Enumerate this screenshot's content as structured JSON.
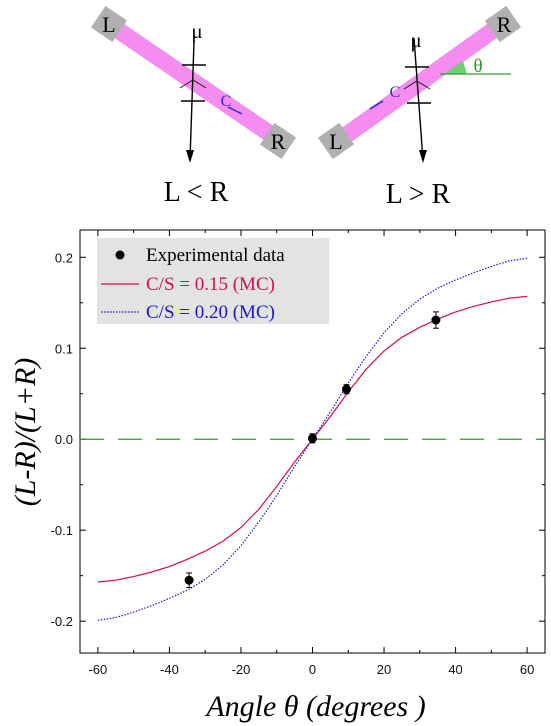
{
  "diagrams": {
    "left": {
      "end_left": "L",
      "end_right": "R",
      "muon": "μ",
      "center": "C",
      "condition": "L < R"
    },
    "right": {
      "end_left": "L",
      "end_right": "R",
      "muon": "μ",
      "center": "C",
      "angle": "θ",
      "condition": "L > R"
    }
  },
  "colors": {
    "bar": "#f58cf0",
    "end_caps": "#b0b0b0",
    "mc_015": "#d0104c",
    "mc_020": "#1a1acc",
    "zero_line": "#2e9a2e",
    "angle_fill": "#6fcf6f",
    "legend_bg": "#e3e3e3",
    "center_text": "#2b2bd8"
  },
  "chart_data": {
    "type": "line",
    "xlabel": "Angle θ (degrees )",
    "ylabel": "(L-R)/(L+R)",
    "xlim": [
      -65,
      65
    ],
    "ylim": [
      -0.235,
      0.23
    ],
    "xticks": [
      "-60",
      "-40",
      "-20",
      "0",
      "20",
      "40",
      "60"
    ],
    "yticks": [
      "-0.2",
      "-0.1",
      "0.0",
      "0.1",
      "0.2"
    ],
    "legend": {
      "placement": "top-left"
    },
    "series": [
      {
        "name": "Experimental data",
        "kind": "scatter",
        "points": [
          {
            "x": -34.5,
            "y": -0.155,
            "err": 0.008
          },
          {
            "x": 0,
            "y": 0.001,
            "err": 0.005
          },
          {
            "x": 9.5,
            "y": 0.055,
            "err": 0.005
          },
          {
            "x": 34.5,
            "y": 0.131,
            "err": 0.009
          }
        ]
      },
      {
        "name": "C/S = 0.15 (MC)",
        "kind": "line",
        "x": [
          -60,
          -55,
          -50,
          -45,
          -40,
          -35,
          -30,
          -25,
          -20,
          -15,
          -10,
          -5,
          0,
          5,
          10,
          15,
          20,
          25,
          30,
          35,
          40,
          45,
          50,
          55,
          60
        ],
        "y": [
          -0.157,
          -0.155,
          -0.151,
          -0.146,
          -0.14,
          -0.132,
          -0.123,
          -0.112,
          -0.097,
          -0.077,
          -0.052,
          -0.025,
          0.0,
          0.025,
          0.052,
          0.077,
          0.097,
          0.112,
          0.123,
          0.132,
          0.14,
          0.146,
          0.151,
          0.155,
          0.157
        ]
      },
      {
        "name": "C/S = 0.20 (MC)",
        "kind": "line",
        "x": [
          -60,
          -55,
          -50,
          -45,
          -40,
          -35,
          -30,
          -25,
          -20,
          -15,
          -10,
          -5,
          0,
          5,
          10,
          15,
          20,
          25,
          30,
          35,
          40,
          45,
          50,
          55,
          60
        ],
        "y": [
          -0.199,
          -0.196,
          -0.19,
          -0.183,
          -0.175,
          -0.166,
          -0.154,
          -0.138,
          -0.117,
          -0.091,
          -0.062,
          -0.03,
          0.0,
          0.03,
          0.062,
          0.091,
          0.117,
          0.138,
          0.154,
          0.166,
          0.175,
          0.183,
          0.19,
          0.196,
          0.199
        ]
      },
      {
        "name": "",
        "kind": "reference",
        "y": 0.0
      }
    ]
  }
}
